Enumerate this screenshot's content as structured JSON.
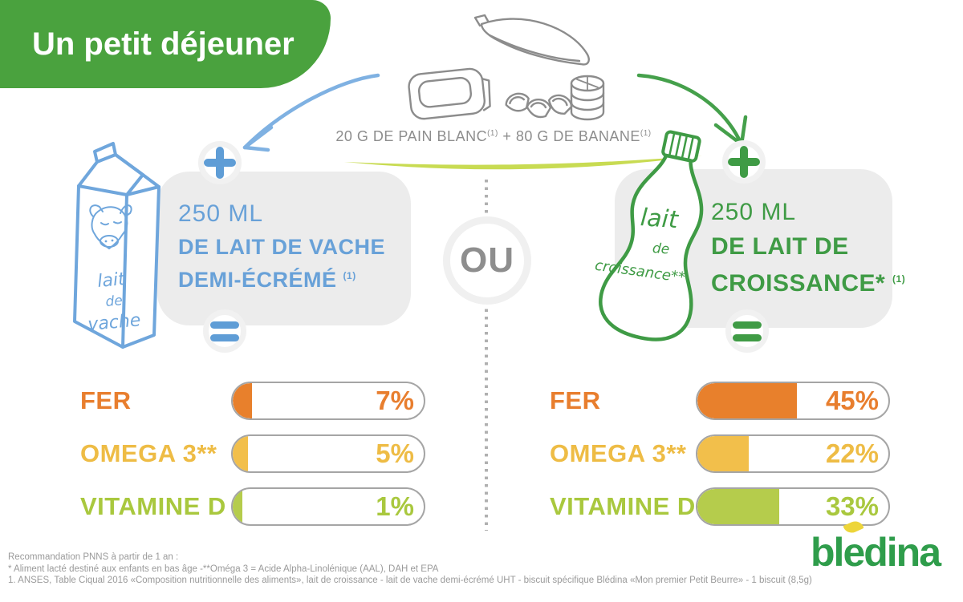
{
  "banner": {
    "title": "Un petit déjeuner",
    "bg_color": "#4AA23E",
    "text_color": "#FFFFFF"
  },
  "meal_header": {
    "caption1": "20 G DE PAIN BLANC",
    "caption_sup1": "(1)",
    "caption2": "+ 80 G DE BANANE",
    "caption_sup2": "(1)",
    "illustrations": [
      "bread-slice",
      "banana",
      "banana-slices",
      "biscuit-stack"
    ],
    "swoosh_color": "#C8DB52"
  },
  "divider": {
    "or_label": "OU"
  },
  "left_option": {
    "accent_color": "#68A1D8",
    "carton_label_lines": [
      "lait",
      "de",
      "vache"
    ],
    "qty": "250 ML",
    "desc_line1": "DE LAIT DE VACHE",
    "desc_line2": "DEMI-ÉCRÉMÉ",
    "desc_sup": "(1)"
  },
  "right_option": {
    "accent_color": "#3F9B45",
    "bottle_label_lines": [
      "lait",
      "de",
      "croissance**"
    ],
    "qty": "250 ML",
    "desc_line1": "DE LAIT DE",
    "desc_line2": "CROISSANCE*",
    "desc_sup": "(1)"
  },
  "chart_data": [
    {
      "type": "bar",
      "group": "250 ML de lait de vache demi-écrémé",
      "categories": [
        "FER",
        "OMEGA 3**",
        "VITAMINE D"
      ],
      "values": [
        7,
        5,
        1
      ],
      "unit": "%",
      "display_values": [
        "7%",
        "5%",
        "1%"
      ],
      "bar_colors": [
        "#E8802C",
        "#F2BF4B",
        "#B5CC4C"
      ],
      "label_colors": [
        "#E87E2E",
        "#EEBC45",
        "#A9C83E"
      ],
      "fill_pct_of_track": [
        10,
        8,
        5
      ],
      "xlim": [
        0,
        100
      ]
    },
    {
      "type": "bar",
      "group": "250 ML de lait de croissance",
      "categories": [
        "FER",
        "OMEGA 3**",
        "VITAMINE D"
      ],
      "values": [
        45,
        22,
        33
      ],
      "unit": "%",
      "display_values": [
        "45%",
        "22%",
        "33%"
      ],
      "bar_colors": [
        "#E8802C",
        "#F2BF4B",
        "#B5CC4C"
      ],
      "label_colors": [
        "#E87E2E",
        "#EEBC45",
        "#A9C83E"
      ],
      "fill_pct_of_track": [
        52,
        27,
        43
      ],
      "xlim": [
        0,
        100
      ]
    }
  ],
  "footer": {
    "lines": [
      "Recommandation PNNS à partir de 1 an :",
      "* Aliment lacté destiné aux enfants en bas âge -**Oméga 3 = Acide Alpha-Linolénique (AAL), DAH et EPA",
      "1. ANSES, Table Ciqual 2016 «Composition nutritionnelle des aliments», lait de croissance - lait de vache demi-écrémé UHT - biscuit spécifique Blédina «Mon premier Petit Beurre» - 1 biscuit (8,5g)"
    ]
  },
  "logo": {
    "text": "blédina",
    "part1": "bl",
    "part2": "e",
    "part3": "dina",
    "color": "#2F9D4B",
    "leaf_color": "#EDD53A"
  }
}
